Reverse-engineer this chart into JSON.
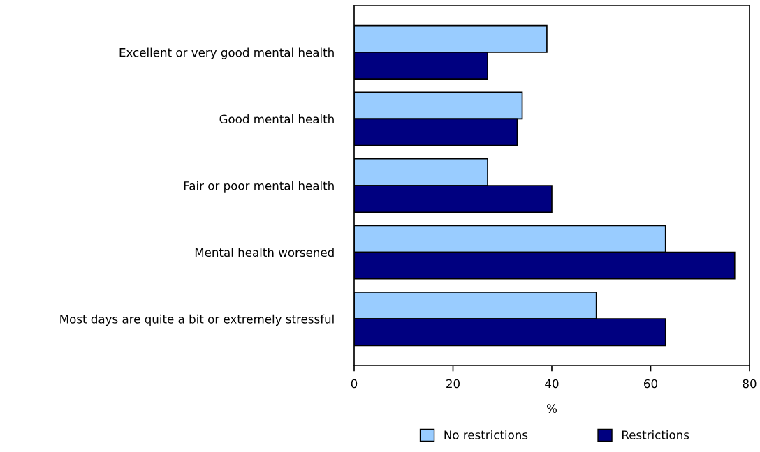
{
  "chart_data": {
    "type": "bar",
    "orientation": "horizontal",
    "xlabel": "%",
    "categories": [
      "Excellent or very good mental health",
      "Good mental health",
      "Fair or poor mental health",
      "Mental health worsened",
      "Most days are quite a bit or extremely stressful"
    ],
    "series": [
      {
        "name": "No restrictions",
        "color": "#99ccff",
        "values": [
          39,
          34,
          27,
          63,
          49
        ]
      },
      {
        "name": "Restrictions",
        "color": "#000080",
        "values": [
          27,
          33,
          40,
          77,
          63
        ]
      }
    ],
    "xlim": [
      0,
      80
    ],
    "xticks": [
      0,
      20,
      40,
      60,
      80
    ],
    "grid": false,
    "legend": "bottom"
  }
}
